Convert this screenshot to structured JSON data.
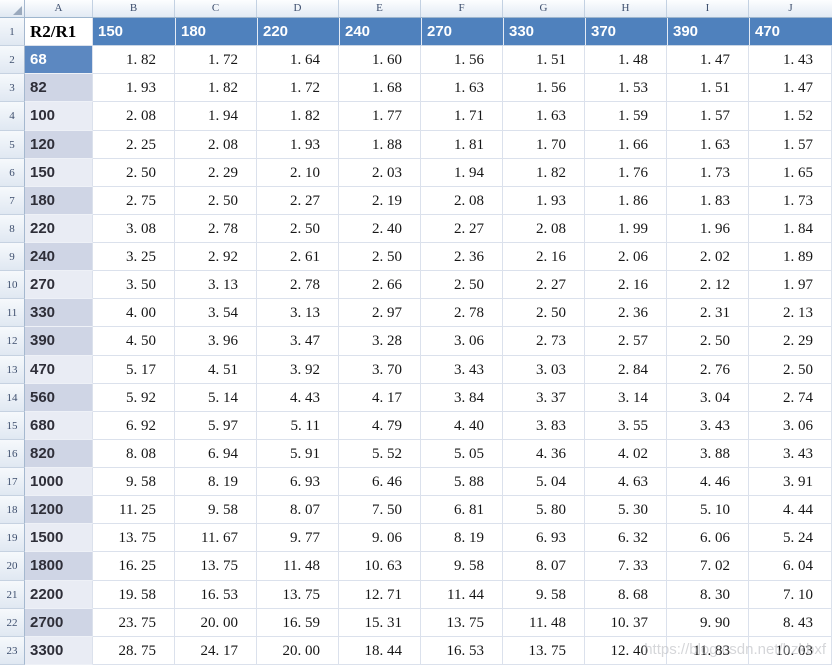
{
  "sheet": {
    "column_letters": [
      "A",
      "B",
      "C",
      "D",
      "E",
      "F",
      "G",
      "H",
      "I",
      "J"
    ],
    "header_row": {
      "row_number": "1",
      "label": "R2/R1",
      "values": [
        "150",
        "180",
        "220",
        "240",
        "270",
        "330",
        "370",
        "390",
        "470"
      ]
    },
    "rows": [
      {
        "row_number": "2",
        "label": "68",
        "shade": "sel",
        "values": [
          "1. 82",
          "1. 72",
          "1. 64",
          "1. 60",
          "1. 56",
          "1. 51",
          "1. 48",
          "1. 47",
          "1. 43"
        ]
      },
      {
        "row_number": "3",
        "label": "82",
        "shade": "dk",
        "values": [
          "1. 93",
          "1. 82",
          "1. 72",
          "1. 68",
          "1. 63",
          "1. 56",
          "1. 53",
          "1. 51",
          "1. 47"
        ]
      },
      {
        "row_number": "4",
        "label": "100",
        "shade": "lt",
        "values": [
          "2. 08",
          "1. 94",
          "1. 82",
          "1. 77",
          "1. 71",
          "1. 63",
          "1. 59",
          "1. 57",
          "1. 52"
        ]
      },
      {
        "row_number": "5",
        "label": "120",
        "shade": "dk",
        "values": [
          "2. 25",
          "2. 08",
          "1. 93",
          "1. 88",
          "1. 81",
          "1. 70",
          "1. 66",
          "1. 63",
          "1. 57"
        ]
      },
      {
        "row_number": "6",
        "label": "150",
        "shade": "lt",
        "values": [
          "2. 50",
          "2. 29",
          "2. 10",
          "2. 03",
          "1. 94",
          "1. 82",
          "1. 76",
          "1. 73",
          "1. 65"
        ]
      },
      {
        "row_number": "7",
        "label": "180",
        "shade": "dk",
        "values": [
          "2. 75",
          "2. 50",
          "2. 27",
          "2. 19",
          "2. 08",
          "1. 93",
          "1. 86",
          "1. 83",
          "1. 73"
        ]
      },
      {
        "row_number": "8",
        "label": "220",
        "shade": "lt",
        "values": [
          "3. 08",
          "2. 78",
          "2. 50",
          "2. 40",
          "2. 27",
          "2. 08",
          "1. 99",
          "1. 96",
          "1. 84"
        ]
      },
      {
        "row_number": "9",
        "label": "240",
        "shade": "dk",
        "values": [
          "3. 25",
          "2. 92",
          "2. 61",
          "2. 50",
          "2. 36",
          "2. 16",
          "2. 06",
          "2. 02",
          "1. 89"
        ]
      },
      {
        "row_number": "10",
        "label": "270",
        "shade": "lt",
        "values": [
          "3. 50",
          "3. 13",
          "2. 78",
          "2. 66",
          "2. 50",
          "2. 27",
          "2. 16",
          "2. 12",
          "1. 97"
        ]
      },
      {
        "row_number": "11",
        "label": "330",
        "shade": "dk",
        "values": [
          "4. 00",
          "3. 54",
          "3. 13",
          "2. 97",
          "2. 78",
          "2. 50",
          "2. 36",
          "2. 31",
          "2. 13"
        ]
      },
      {
        "row_number": "12",
        "label": "390",
        "shade": "dk",
        "values": [
          "4. 50",
          "3. 96",
          "3. 47",
          "3. 28",
          "3. 06",
          "2. 73",
          "2. 57",
          "2. 50",
          "2. 29"
        ]
      },
      {
        "row_number": "13",
        "label": "470",
        "shade": "lt",
        "values": [
          "5. 17",
          "4. 51",
          "3. 92",
          "3. 70",
          "3. 43",
          "3. 03",
          "2. 84",
          "2. 76",
          "2. 50"
        ]
      },
      {
        "row_number": "14",
        "label": "560",
        "shade": "dk",
        "values": [
          "5. 92",
          "5. 14",
          "4. 43",
          "4. 17",
          "3. 84",
          "3. 37",
          "3. 14",
          "3. 04",
          "2. 74"
        ]
      },
      {
        "row_number": "15",
        "label": "680",
        "shade": "lt",
        "values": [
          "6. 92",
          "5. 97",
          "5. 11",
          "4. 79",
          "4. 40",
          "3. 83",
          "3. 55",
          "3. 43",
          "3. 06"
        ]
      },
      {
        "row_number": "16",
        "label": "820",
        "shade": "dk",
        "values": [
          "8. 08",
          "6. 94",
          "5. 91",
          "5. 52",
          "5. 05",
          "4. 36",
          "4. 02",
          "3. 88",
          "3. 43"
        ]
      },
      {
        "row_number": "17",
        "label": "1000",
        "shade": "lt",
        "values": [
          "9. 58",
          "8. 19",
          "6. 93",
          "6. 46",
          "5. 88",
          "5. 04",
          "4. 63",
          "4. 46",
          "3. 91"
        ]
      },
      {
        "row_number": "18",
        "label": "1200",
        "shade": "dk",
        "values": [
          "11. 25",
          "9. 58",
          "8. 07",
          "7. 50",
          "6. 81",
          "5. 80",
          "5. 30",
          "5. 10",
          "4. 44"
        ]
      },
      {
        "row_number": "19",
        "label": "1500",
        "shade": "lt",
        "values": [
          "13. 75",
          "11. 67",
          "9. 77",
          "9. 06",
          "8. 19",
          "6. 93",
          "6. 32",
          "6. 06",
          "5. 24"
        ]
      },
      {
        "row_number": "20",
        "label": "1800",
        "shade": "dk",
        "values": [
          "16. 25",
          "13. 75",
          "11. 48",
          "10. 63",
          "9. 58",
          "8. 07",
          "7. 33",
          "7. 02",
          "6. 04"
        ]
      },
      {
        "row_number": "21",
        "label": "2200",
        "shade": "lt",
        "values": [
          "19. 58",
          "16. 53",
          "13. 75",
          "12. 71",
          "11. 44",
          "9. 58",
          "8. 68",
          "8. 30",
          "7. 10"
        ]
      },
      {
        "row_number": "22",
        "label": "2700",
        "shade": "dk",
        "values": [
          "23. 75",
          "20. 00",
          "16. 59",
          "15. 31",
          "13. 75",
          "11. 48",
          "10. 37",
          "9. 90",
          "8. 43"
        ]
      },
      {
        "row_number": "23",
        "label": "3300",
        "shade": "lt",
        "values": [
          "28. 75",
          "24. 17",
          "20. 00",
          "18. 44",
          "16. 53",
          "13. 75",
          "12. 40",
          "11. 83",
          "10. 03"
        ]
      }
    ],
    "colors": {
      "table_header_fill": "#4f81bd",
      "selected_label_fill": "#5c88c1",
      "band_dark": "#cfd5e5",
      "band_light": "#e9ecf4",
      "gridline": "#dbe1ec"
    }
  },
  "watermark": {
    "text": "https://blog.csdn.net/hzkbxf"
  }
}
